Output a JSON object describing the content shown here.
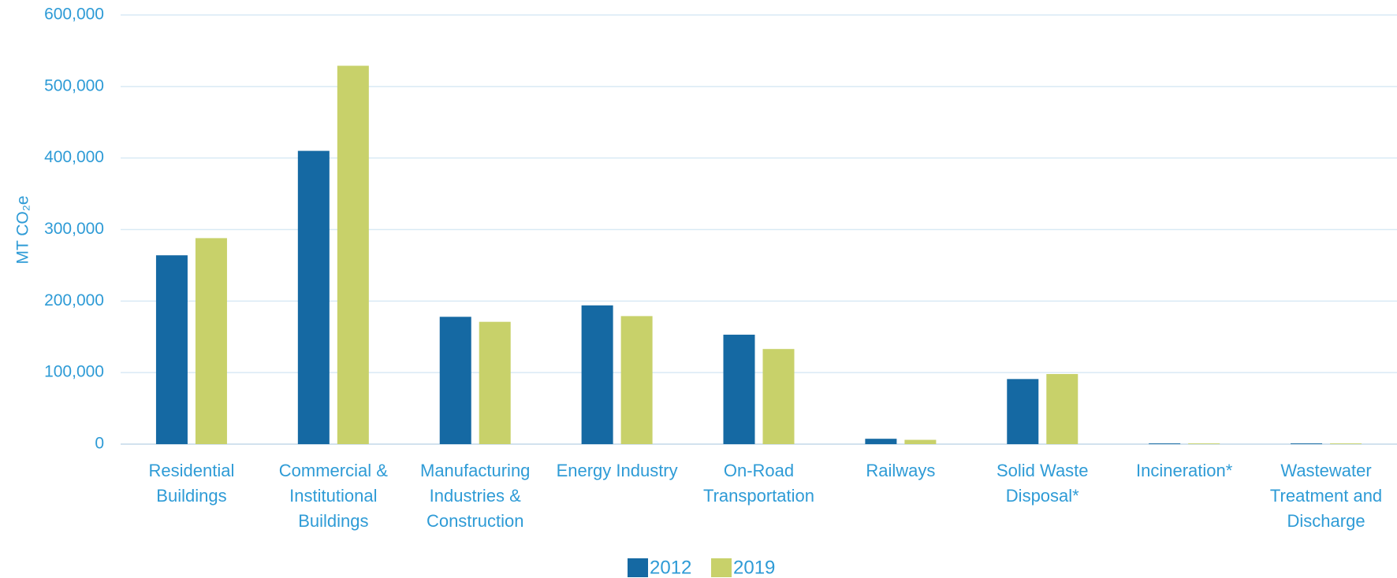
{
  "chart_data": {
    "type": "bar",
    "y_label": "MT CO₂e",
    "categories": [
      "Residential Buildings",
      "Commercial & Institutional Buildings",
      "Manufacturing Industries & Construction",
      "Energy Industry",
      "On-Road Transportation",
      "Railways",
      "Solid Waste Disposal*",
      "Incineration*",
      "Wastewater Treatment and Discharge"
    ],
    "series": [
      {
        "name": "2012",
        "color": "#1569a3",
        "values": [
          264000,
          410000,
          178000,
          194000,
          153000,
          7500,
          91000,
          1000,
          1000
        ]
      },
      {
        "name": "2019",
        "color": "#c8d16a",
        "values": [
          288000,
          529000,
          171000,
          179000,
          133000,
          6000,
          98000,
          1000,
          1000
        ]
      }
    ],
    "ylim": [
      0,
      600000
    ],
    "yticks": [
      0,
      {
        "value": 100000,
        "label": "100,000"
      },
      {
        "value": 200000,
        "label": "200,000"
      },
      {
        "value": 300000,
        "label": "300,000"
      },
      {
        "value": 400000,
        "label": "400,000"
      },
      {
        "value": 500000,
        "label": "500,000"
      },
      {
        "value": 600000,
        "label": "600,000"
      }
    ],
    "grid": true,
    "legend": "bottom"
  }
}
